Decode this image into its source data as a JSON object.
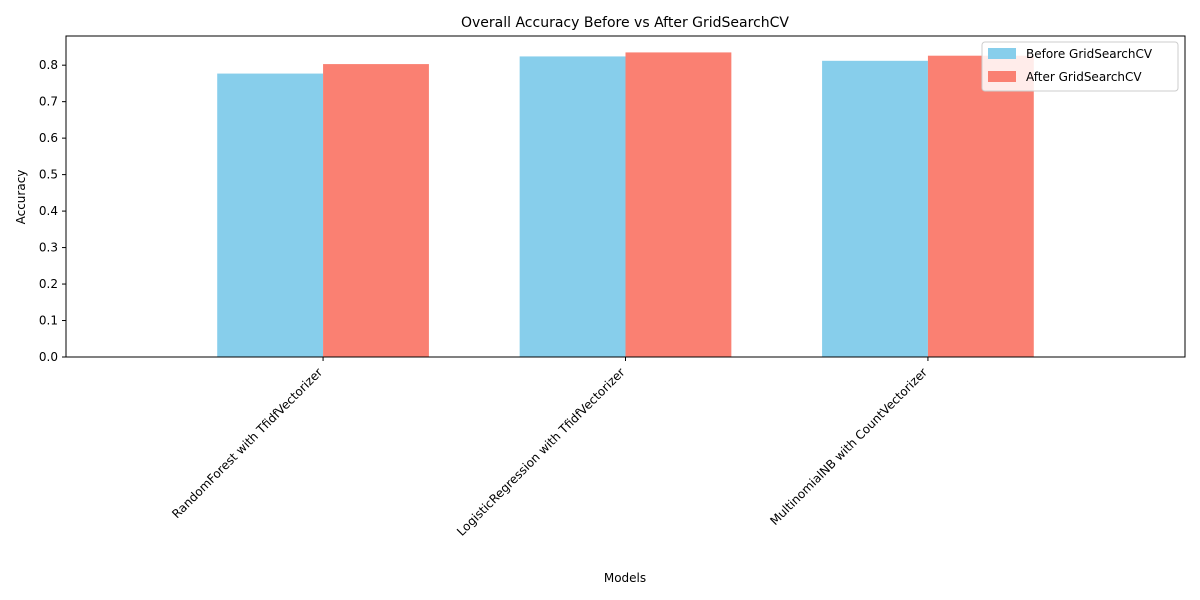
{
  "chart_data": {
    "type": "bar",
    "title": "Overall Accuracy Before vs After GridSearchCV",
    "xlabel": "Models",
    "ylabel": "Accuracy",
    "categories": [
      "RandomForest with TfidfVectorizer",
      "LogisticRegression with TfidfVectorizer",
      "MultinomialNB with CountVectorizer"
    ],
    "series": [
      {
        "name": "Before GridSearchCV",
        "color": "#87ceeb",
        "values": [
          0.777,
          0.824,
          0.812
        ]
      },
      {
        "name": "After GridSearchCV",
        "color": "#fa8072",
        "values": [
          0.803,
          0.835,
          0.826
        ]
      }
    ],
    "ylim": [
      0,
      0.88
    ],
    "yticks": [
      "0.0",
      "0.1",
      "0.2",
      "0.3",
      "0.4",
      "0.5",
      "0.6",
      "0.7",
      "0.8"
    ],
    "grid": false,
    "legend": "upper-right"
  }
}
